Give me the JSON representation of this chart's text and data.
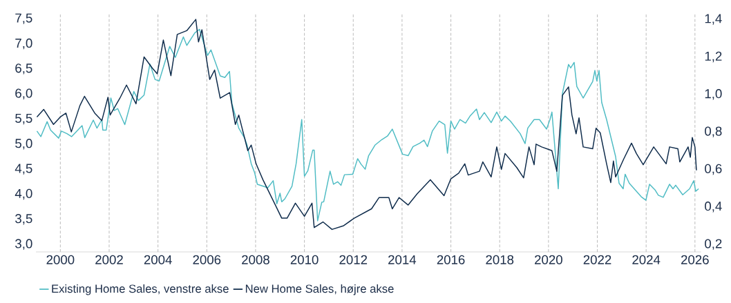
{
  "chart_data": {
    "type": "line",
    "xlim": [
      1999,
      2026.25
    ],
    "xticks": [
      2000,
      2002,
      2004,
      2006,
      2008,
      2010,
      2012,
      2014,
      2016,
      2018,
      2020,
      2022,
      2024,
      2026
    ],
    "ylim": [
      2.85,
      7.6
    ],
    "yticks": [
      {
        "value": 3.0,
        "label": "3,0"
      },
      {
        "value": 3.5,
        "label": "3,5"
      },
      {
        "value": 4.0,
        "label": "4,0"
      },
      {
        "value": 4.5,
        "label": "4,5"
      },
      {
        "value": 5.0,
        "label": "5,0"
      },
      {
        "value": 5.5,
        "label": "5,5"
      },
      {
        "value": 6.0,
        "label": "6,0"
      },
      {
        "value": 6.5,
        "label": "6,5"
      },
      {
        "value": 7.0,
        "label": "7,0"
      },
      {
        "value": 7.5,
        "label": "7,5"
      }
    ],
    "y2lim": [
      0.16,
      1.43
    ],
    "y2ticks": [
      {
        "value": 0.2,
        "label": "0,2"
      },
      {
        "value": 0.4,
        "label": "0,4"
      },
      {
        "value": 0.6,
        "label": "0,6"
      },
      {
        "value": 0.8,
        "label": "0,8"
      },
      {
        "value": 1.0,
        "label": "1,0"
      },
      {
        "value": 1.2,
        "label": "1,2"
      },
      {
        "value": 1.4,
        "label": "1,4"
      }
    ],
    "grid": "x",
    "legend": "bottom left",
    "series": [
      {
        "name": "Existing Home Sales, venstre akse",
        "color": "#4fbcc4",
        "x": [
          1999.04,
          1999.2,
          1999.46,
          1999.6,
          1999.93,
          2000.04,
          2000.27,
          2000.46,
          2000.89,
          2001.0,
          2001.35,
          2001.5,
          2001.7,
          2001.74,
          2001.88,
          2002.07,
          2002.21,
          2002.35,
          2002.64,
          2003.01,
          2003.2,
          2003.43,
          2003.67,
          2003.88,
          2004.05,
          2004.48,
          2004.71,
          2005.04,
          2005.18,
          2005.51,
          2005.7,
          2006.03,
          2006.17,
          2006.55,
          2006.74,
          2006.93,
          2007.03,
          2007.31,
          2007.55,
          2007.65,
          2007.82,
          2007.96,
          2008.07,
          2008.5,
          2008.72,
          2008.87,
          2009.0,
          2009.07,
          2009.2,
          2009.49,
          2009.66,
          2009.89,
          2010.0,
          2010.14,
          2010.34,
          2010.4,
          2010.54,
          2010.71,
          2010.79,
          2011.05,
          2011.19,
          2011.36,
          2011.5,
          2011.64,
          2011.98,
          2012.18,
          2012.32,
          2012.49,
          2012.63,
          2012.89,
          2013.17,
          2013.4,
          2013.6,
          2014.02,
          2014.25,
          2014.45,
          2014.73,
          2014.9,
          2015.04,
          2015.24,
          2015.52,
          2015.75,
          2015.86,
          2016.0,
          2016.15,
          2016.37,
          2016.6,
          2016.8,
          2017.05,
          2017.17,
          2017.37,
          2017.65,
          2017.88,
          2018.07,
          2018.22,
          2018.44,
          2018.84,
          2019.04,
          2019.15,
          2019.41,
          2019.63,
          2019.92,
          2020.06,
          2020.14,
          2020.4,
          2020.57,
          2020.82,
          2020.91,
          2021.05,
          2021.16,
          2021.42,
          2021.61,
          2021.81,
          2021.9,
          2021.98,
          2022.07,
          2022.18,
          2022.38,
          2022.75,
          2022.89,
          2023.06,
          2023.14,
          2023.31,
          2023.8,
          2023.99,
          2024.14,
          2024.36,
          2024.5,
          2024.7,
          2024.96,
          2025.1,
          2025.21,
          2025.5,
          2025.78,
          2025.95,
          2026.03,
          2026.15
        ],
        "values": [
          5.26,
          5.15,
          5.45,
          5.28,
          5.12,
          5.26,
          5.21,
          5.15,
          5.37,
          5.13,
          5.48,
          5.32,
          5.49,
          5.28,
          5.28,
          5.92,
          5.67,
          5.71,
          5.39,
          6.05,
          5.87,
          5.98,
          6.6,
          6.29,
          6.26,
          6.95,
          6.73,
          7.14,
          6.97,
          7.22,
          7.29,
          6.77,
          6.88,
          6.36,
          6.33,
          6.45,
          5.81,
          5.32,
          5.12,
          4.98,
          4.61,
          4.43,
          4.2,
          4.13,
          4.27,
          3.81,
          4.02,
          3.85,
          3.91,
          4.16,
          4.61,
          5.49,
          4.36,
          4.47,
          4.88,
          4.88,
          3.47,
          3.84,
          3.85,
          4.46,
          4.2,
          4.25,
          4.18,
          4.39,
          4.4,
          4.71,
          4.6,
          4.5,
          4.77,
          4.98,
          5.09,
          5.16,
          5.3,
          4.8,
          4.77,
          4.95,
          5.02,
          5.08,
          4.95,
          5.26,
          5.46,
          5.39,
          4.82,
          5.46,
          5.3,
          5.49,
          5.42,
          5.57,
          5.7,
          5.49,
          5.63,
          5.43,
          5.64,
          5.46,
          5.56,
          5.46,
          5.21,
          5.01,
          5.32,
          5.49,
          5.49,
          5.3,
          5.49,
          5.64,
          4.11,
          6.01,
          6.59,
          6.52,
          6.63,
          6.15,
          5.92,
          6.08,
          6.25,
          6.47,
          6.26,
          6.47,
          5.83,
          5.49,
          4.75,
          4.22,
          4.11,
          4.4,
          4.22,
          3.95,
          3.88,
          4.2,
          4.09,
          3.98,
          3.94,
          4.2,
          4.11,
          4.18,
          3.99,
          4.11,
          4.27,
          4.06,
          4.11
        ]
      },
      {
        "name": "New Home Sales, højre akse",
        "color": "#0d2a4a",
        "axis": "y2",
        "x": [
          1999.04,
          1999.32,
          1999.72,
          2000.0,
          2000.23,
          2000.45,
          2000.8,
          2000.99,
          2001.41,
          2001.7,
          2001.95,
          2002.04,
          2002.44,
          2002.71,
          2003.1,
          2003.43,
          2003.77,
          2003.97,
          2004.22,
          2004.53,
          2004.79,
          2005.18,
          2005.55,
          2005.66,
          2005.8,
          2006.12,
          2006.32,
          2006.55,
          2006.94,
          2007.17,
          2007.31,
          2007.68,
          2007.82,
          2008.02,
          2008.3,
          2008.81,
          2009.07,
          2009.29,
          2009.63,
          2010.0,
          2010.31,
          2010.4,
          2010.76,
          2011.13,
          2011.61,
          2012.04,
          2012.75,
          2013.06,
          2013.46,
          2013.6,
          2013.88,
          2014.25,
          2014.62,
          2015.16,
          2015.72,
          2016.0,
          2016.32,
          2016.57,
          2016.71,
          2017.17,
          2017.31,
          2017.65,
          2017.88,
          2018.07,
          2018.22,
          2018.7,
          2018.98,
          2019.2,
          2019.41,
          2019.49,
          2019.72,
          2020.14,
          2020.34,
          2020.57,
          2020.82,
          2020.96,
          2021.13,
          2021.25,
          2021.42,
          2021.81,
          2021.95,
          2022.12,
          2022.38,
          2022.55,
          2022.66,
          2022.75,
          2023.08,
          2023.4,
          2023.6,
          2023.88,
          2024.31,
          2024.82,
          2024.96,
          2025.3,
          2025.38,
          2025.72,
          2025.81,
          2025.89,
          2026.0,
          2026.06
        ],
        "values": [
          0.88,
          0.92,
          0.84,
          0.88,
          0.9,
          0.8,
          0.94,
          0.99,
          0.9,
          0.86,
          0.985,
          0.89,
          0.98,
          1.05,
          0.95,
          1.2,
          1.14,
          1.11,
          1.29,
          1.1,
          1.32,
          1.34,
          1.4,
          1.28,
          1.345,
          1.08,
          1.13,
          0.98,
          1.01,
          0.84,
          0.89,
          0.7,
          0.73,
          0.63,
          0.545,
          0.41,
          0.34,
          0.34,
          0.42,
          0.35,
          0.42,
          0.29,
          0.32,
          0.28,
          0.3,
          0.34,
          0.39,
          0.45,
          0.45,
          0.39,
          0.45,
          0.41,
          0.47,
          0.545,
          0.46,
          0.55,
          0.58,
          0.63,
          0.57,
          0.59,
          0.64,
          0.56,
          0.72,
          0.6,
          0.685,
          0.61,
          0.555,
          0.72,
          0.625,
          0.735,
          0.72,
          0.7,
          0.59,
          0.995,
          1.04,
          0.89,
          0.79,
          0.875,
          0.72,
          0.71,
          0.82,
          0.795,
          0.63,
          0.53,
          0.645,
          0.56,
          0.655,
          0.74,
          0.685,
          0.625,
          0.72,
          0.63,
          0.72,
          0.71,
          0.64,
          0.72,
          0.665,
          0.77,
          0.72,
          0.595
        ]
      }
    ]
  }
}
